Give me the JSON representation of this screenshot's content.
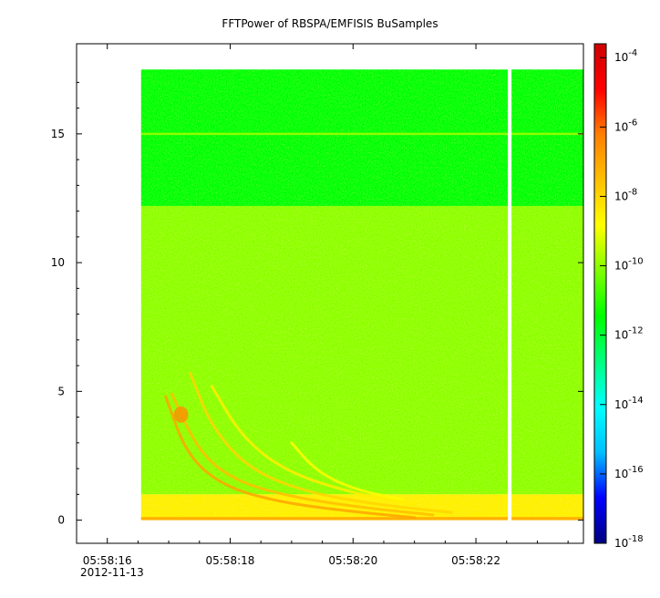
{
  "chart_data": {
    "type": "heatmap",
    "title": "FFTPower of RBSPA/EMFISIS  BuSamples",
    "xlabel": "",
    "ylabel": "",
    "date": "2012-11-13",
    "x_tick_labels": [
      "05:58:16",
      "05:58:18",
      "05:58:20",
      "05:58:22"
    ],
    "x_tick_seconds": [
      16,
      18,
      20,
      22
    ],
    "xlim_seconds": [
      15.5,
      23.75
    ],
    "data_x_range_seconds": [
      16.55,
      23.75
    ],
    "data_gap_seconds": [
      22.52,
      22.58
    ],
    "y_ticks": [
      0,
      5,
      10,
      15
    ],
    "ylim": [
      -0.9,
      18.5
    ],
    "data_y_range": [
      0,
      17.5
    ],
    "colorbar": {
      "scale": "log",
      "range_exponents": [
        -18,
        -3.6
      ],
      "tick_exponents": [
        -4,
        -6,
        -8,
        -10,
        -12,
        -14,
        -16,
        -18
      ],
      "colormap": [
        "#00007f",
        "#0000ff",
        "#00bfff",
        "#00ffff",
        "#00ff7f",
        "#00ff00",
        "#7fff00",
        "#ffff00",
        "#ffbf00",
        "#ff7f00",
        "#ff0000",
        "#cc0000"
      ]
    },
    "bands": [
      {
        "y_range": [
          12.2,
          17.5
        ],
        "level_exponent": -11.5
      },
      {
        "y_range": [
          1.0,
          12.2
        ],
        "level_exponent": -10
      },
      {
        "y_range": [
          0,
          1.0
        ],
        "level_exponent": -8.5
      }
    ],
    "lines": [
      {
        "y": 15.0,
        "level_exponent": -10
      }
    ],
    "features": [
      {
        "name": "chorus-arc",
        "points": [
          [
            16.95,
            4.8
          ],
          [
            17.3,
            2.5
          ],
          [
            17.9,
            1.3
          ],
          [
            18.8,
            0.7
          ],
          [
            19.9,
            0.35
          ],
          [
            21.0,
            0.1
          ]
        ],
        "level_exponent": -7
      },
      {
        "name": "chorus-arc",
        "points": [
          [
            17.05,
            4.9
          ],
          [
            17.5,
            2.6
          ],
          [
            18.1,
            1.5
          ],
          [
            19.0,
            0.9
          ],
          [
            20.1,
            0.5
          ],
          [
            21.3,
            0.2
          ]
        ],
        "level_exponent": -7.5
      },
      {
        "name": "chorus-arc",
        "points": [
          [
            17.35,
            5.7
          ],
          [
            17.7,
            3.6
          ],
          [
            18.3,
            2.0
          ],
          [
            19.2,
            1.1
          ],
          [
            20.4,
            0.6
          ],
          [
            21.6,
            0.3
          ]
        ],
        "level_exponent": -8
      },
      {
        "name": "chorus-arc",
        "points": [
          [
            17.7,
            5.2
          ],
          [
            18.2,
            3.2
          ],
          [
            18.9,
            1.9
          ],
          [
            19.9,
            1.1
          ],
          [
            21.0,
            0.6
          ]
        ],
        "level_exponent": -8.5
      },
      {
        "name": "chorus-arc",
        "points": [
          [
            19.0,
            3.0
          ],
          [
            19.4,
            1.9
          ],
          [
            20.0,
            1.2
          ],
          [
            20.8,
            0.8
          ]
        ],
        "level_exponent": -8.8
      },
      {
        "name": "chorus-spot",
        "points": [
          [
            17.2,
            4.1
          ],
          [
            17.3,
            4.0
          ]
        ],
        "level_exponent": -6.5
      }
    ]
  }
}
